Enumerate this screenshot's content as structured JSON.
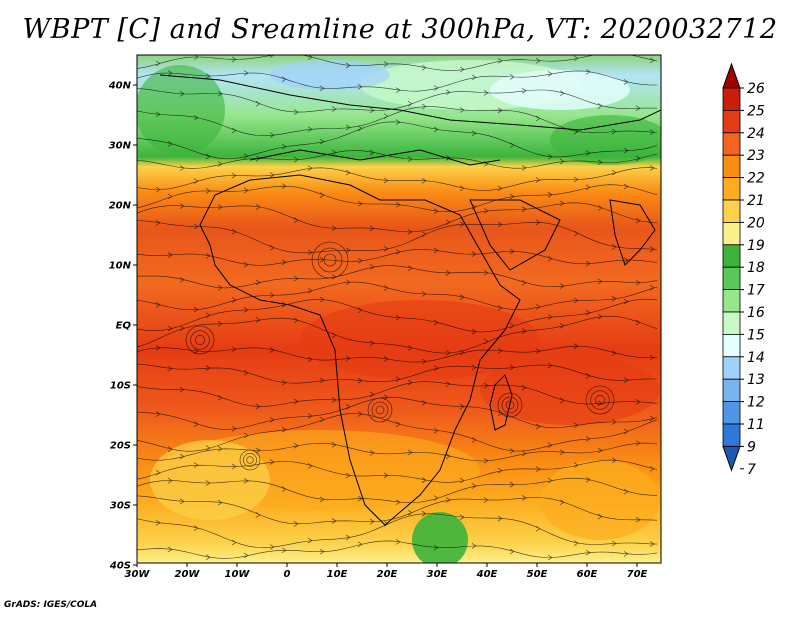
{
  "title": "WBPT [C] and Sreamline at 300hPa, VT: 2020032712",
  "footer": "GrADS: IGES/COLA",
  "lat_ticks": [
    "40N",
    "30N",
    "20N",
    "10N",
    "EQ",
    "10S",
    "20S",
    "30S",
    "40S"
  ],
  "lon_ticks": [
    "30W",
    "20W",
    "10W",
    "0",
    "10E",
    "20E",
    "30E",
    "40E",
    "50E",
    "60E",
    "70E"
  ],
  "colorbar": {
    "labels": [
      "26",
      "25",
      "24",
      "23",
      "22",
      "21",
      "20",
      "19",
      "18",
      "17",
      "16",
      "15",
      "14",
      "13",
      "12",
      "11",
      "9",
      "7"
    ],
    "colors": [
      "#a00000",
      "#c81e0a",
      "#e63c14",
      "#f5641e",
      "#fa8c14",
      "#fcac1e",
      "#fcd24a",
      "#fcf08c",
      "#3cb43c",
      "#5ac85a",
      "#96e68c",
      "#c8fac8",
      "#e6ffff",
      "#a0d2fa",
      "#78b4f0",
      "#5096e6",
      "#2c78dc",
      "#1e5ab4"
    ]
  },
  "colors": {
    "frame": "#000000",
    "streamline": "#000000",
    "coast": "#000000"
  }
}
